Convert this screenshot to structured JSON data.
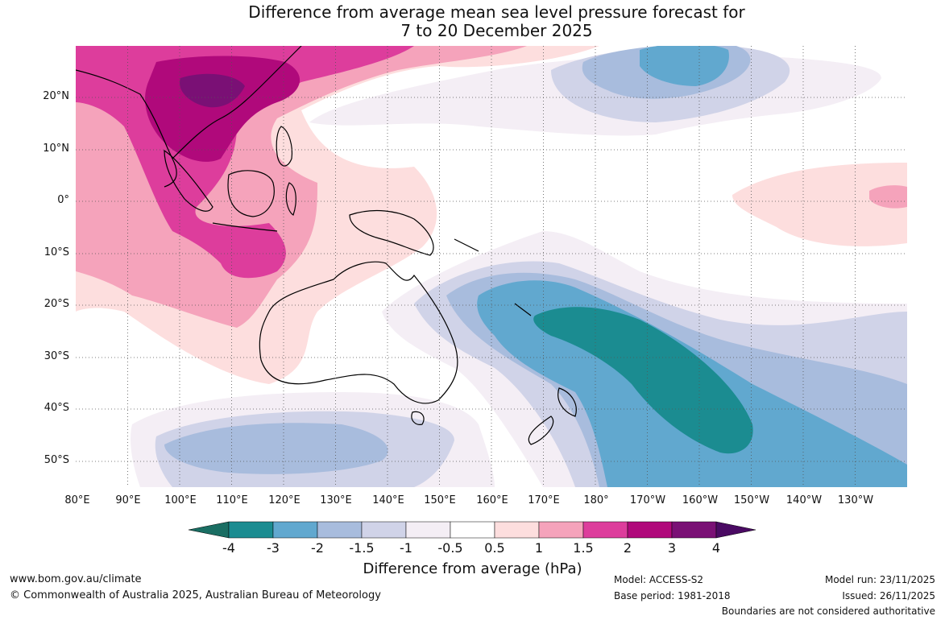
{
  "title": {
    "line1": "Difference from average mean sea level pressure forecast for",
    "line2": "7 to 20 December 2025"
  },
  "map": {
    "lat_labels": [
      "20°N",
      "10°N",
      "0°",
      "10°S",
      "20°S",
      "30°S",
      "40°S",
      "50°S"
    ],
    "lon_labels": [
      "80°E",
      "90°E",
      "100°E",
      "110°E",
      "120°E",
      "130°E",
      "140°E",
      "150°E",
      "160°E",
      "170°E",
      "180°",
      "170°W",
      "160°W",
      "150°W",
      "140°W",
      "130°W"
    ],
    "extent": {
      "lon_min": 80,
      "lon_max": 240,
      "lat_min": -55,
      "lat_max": 30
    },
    "gridlines": true,
    "anomaly_regions": [
      {
        "name": "positive anomaly over Indonesia / Southeast Asia",
        "max_hPa": 3
      },
      {
        "name": "negative anomaly Tasman Sea / southwest Pacific",
        "min_hPa": -4
      },
      {
        "name": "negative anomaly north Pacific near Hawaii",
        "min_hPa": -3
      },
      {
        "name": "negative anomaly southern Indian Ocean",
        "min_hPa": -2
      },
      {
        "name": "positive anomaly equatorial east Pacific",
        "max_hPa": 1.5
      }
    ]
  },
  "colorbar": {
    "title": "Difference from average (hPa)",
    "labels": [
      "-4",
      "-3",
      "-2",
      "-1.5",
      "-1",
      "-0.5",
      "0.5",
      "1",
      "1.5",
      "2",
      "3",
      "4"
    ],
    "colors": [
      "#1a6e63",
      "#1b8c91",
      "#61a8cf",
      "#a8bcdd",
      "#d0d3e8",
      "#f4eef5",
      "#ffffff",
      "#fddede",
      "#f5a3bb",
      "#dd3d9c",
      "#b0097b",
      "#7a1075",
      "#4a0a63"
    ]
  },
  "footer": {
    "website": "www.bom.gov.au/climate",
    "copyright": "© Commonwealth of Australia 2025, Australian Bureau of Meteorology",
    "model": "Model: ACCESS-S2",
    "base_period": "Base period: 1981-2018",
    "model_run": "Model run: 23/11/2025",
    "issued": "Issued: 26/11/2025",
    "disclaimer": "Boundaries are not considered authoritative"
  }
}
